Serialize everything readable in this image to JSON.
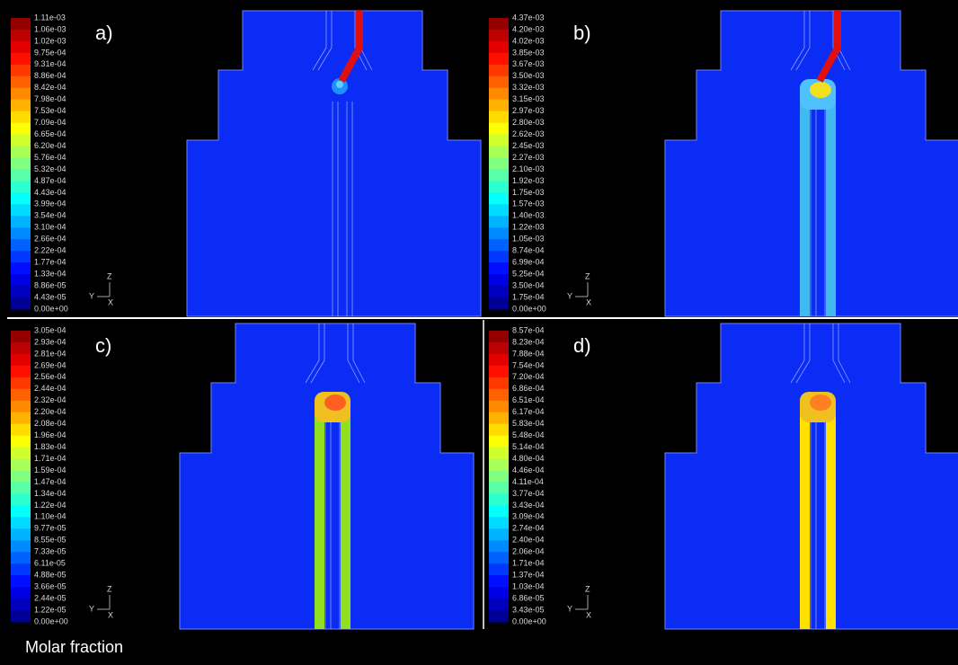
{
  "panels": [
    {
      "label": "a)",
      "colorbar_labels": [
        "1.11e-03",
        "1.06e-03",
        "1.02e-03",
        "9.75e-04",
        "9.31e-04",
        "8.86e-04",
        "8.42e-04",
        "7.98e-04",
        "7.53e-04",
        "7.09e-04",
        "6.65e-04",
        "6.20e-04",
        "5.76e-04",
        "5.32e-04",
        "4.87e-04",
        "4.43e-04",
        "3.99e-04",
        "3.54e-04",
        "3.10e-04",
        "2.66e-04",
        "2.22e-04",
        "1.77e-04",
        "1.33e-04",
        "8.86e-05",
        "4.43e-05",
        "0.00e+00"
      ],
      "axes": {
        "z": "Z",
        "y": "Y",
        "x": "X"
      }
    },
    {
      "label": "b)",
      "colorbar_labels": [
        "4.37e-03",
        "4.20e-03",
        "4.02e-03",
        "3.85e-03",
        "3.67e-03",
        "3.50e-03",
        "3.32e-03",
        "3.15e-03",
        "2.97e-03",
        "2.80e-03",
        "2.62e-03",
        "2.45e-03",
        "2.27e-03",
        "2.10e-03",
        "1.92e-03",
        "1.75e-03",
        "1.57e-03",
        "1.40e-03",
        "1.22e-03",
        "1.05e-03",
        "8.74e-04",
        "6.99e-04",
        "5.25e-04",
        "3.50e-04",
        "1.75e-04",
        "0.00e+00"
      ],
      "axes": {
        "z": "Z",
        "y": "Y",
        "x": "X"
      }
    },
    {
      "label": "c)",
      "colorbar_labels": [
        "3.05e-04",
        "2.93e-04",
        "2.81e-04",
        "2.69e-04",
        "2.56e-04",
        "2.44e-04",
        "2.32e-04",
        "2.20e-04",
        "2.08e-04",
        "1.96e-04",
        "1.83e-04",
        "1.71e-04",
        "1.59e-04",
        "1.47e-04",
        "1.34e-04",
        "1.22e-04",
        "1.10e-04",
        "9.77e-05",
        "8.55e-05",
        "7.33e-05",
        "6.11e-05",
        "4.88e-05",
        "3.66e-05",
        "2.44e-05",
        "1.22e-05",
        "0.00e+00"
      ],
      "axes": {
        "z": "Z",
        "y": "Y",
        "x": "X"
      }
    },
    {
      "label": "d)",
      "colorbar_labels": [
        "8.57e-04",
        "8.23e-04",
        "7.88e-04",
        "7.54e-04",
        "7.20e-04",
        "6.86e-04",
        "6.51e-04",
        "6.17e-04",
        "5.83e-04",
        "5.48e-04",
        "5.14e-04",
        "4.80e-04",
        "4.46e-04",
        "4.11e-04",
        "3.77e-04",
        "3.43e-04",
        "3.09e-04",
        "2.74e-04",
        "2.40e-04",
        "2.06e-04",
        "1.71e-04",
        "1.37e-04",
        "1.03e-04",
        "6.86e-05",
        "3.43e-05",
        "0.00e+00"
      ],
      "axes": {
        "z": "Z",
        "y": "Y",
        "x": "X"
      }
    }
  ],
  "caption": "Molar fraction"
}
